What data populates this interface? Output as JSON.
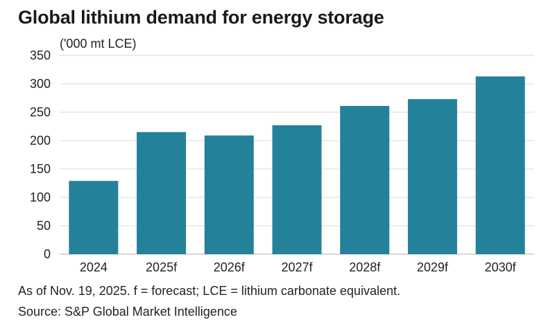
{
  "title": "Global lithium demand for energy storage",
  "unit_label": "('000 mt LCE)",
  "footnote": "As of Nov. 19, 2025. f = forecast; LCE = lithium carbonate equivalent.",
  "source": "Source: S&P Global Market Intelligence",
  "colors": {
    "bar": "#23829a",
    "grid": "#d9d9d9",
    "axis": "#bdbdbd"
  },
  "chart_data": {
    "type": "bar",
    "categories": [
      "2024",
      "2025f",
      "2026f",
      "2027f",
      "2028f",
      "2029f",
      "2030f"
    ],
    "values": [
      129,
      215,
      209,
      227,
      261,
      273,
      313
    ],
    "title": "Global lithium demand for energy storage",
    "ylabel": "('000 mt LCE)",
    "ylim": [
      0,
      350
    ],
    "yticks": [
      0,
      50,
      100,
      150,
      200,
      250,
      300,
      350
    ],
    "grid": true,
    "legend": "none"
  }
}
